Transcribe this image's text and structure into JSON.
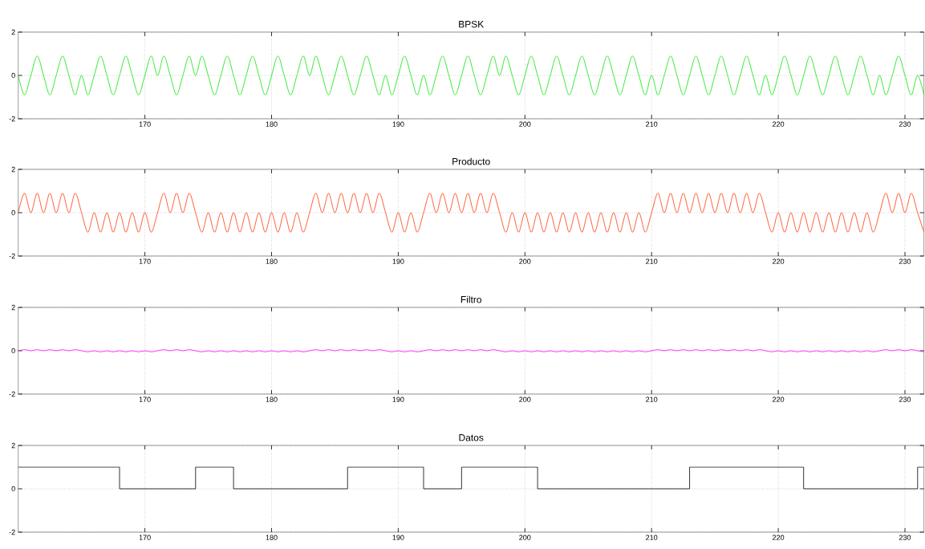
{
  "chart_data": [
    {
      "type": "line",
      "title": "BPSK",
      "color": "#00e600",
      "grid": true,
      "xlim": [
        160,
        231.5
      ],
      "ylim": [
        -2,
        2
      ],
      "xticks": [
        170,
        180,
        190,
        200,
        210,
        220,
        230
      ],
      "yticks": [
        -2,
        0,
        2
      ],
      "x": [
        160,
        160.5,
        161,
        161.5,
        162,
        162.5,
        163,
        163.5,
        164,
        164.5,
        165,
        165.5,
        166,
        166.5,
        167,
        167.5,
        168,
        168.5,
        169,
        169.5,
        170,
        170.5,
        171,
        171.5,
        172,
        172.5,
        173,
        173.5,
        174,
        174.5,
        175,
        175.5,
        176,
        176.5,
        177,
        177.5,
        178,
        178.5,
        179,
        179.5,
        180,
        180.5,
        181,
        181.5,
        182,
        182.5,
        183,
        183.5,
        184,
        184.5,
        185,
        185.5,
        186,
        186.5,
        187,
        187.5,
        188,
        188.5,
        189,
        189.5,
        190,
        190.5,
        191,
        191.5,
        192,
        192.5,
        193,
        193.5,
        194,
        194.5,
        195,
        195.5,
        196,
        196.5,
        197,
        197.5,
        198,
        198.5,
        199,
        199.5,
        200,
        200.5,
        201,
        201.5,
        202,
        202.5,
        203,
        203.5,
        204,
        204.5,
        205,
        205.5,
        206,
        206.5,
        207,
        207.5,
        208,
        208.5,
        209,
        209.5,
        210,
        210.5,
        211,
        211.5,
        212,
        212.5,
        213,
        213.5,
        214,
        214.5,
        215,
        215.5,
        216,
        216.5,
        217,
        217.5,
        218,
        218.5,
        219,
        219.5,
        220,
        220.5,
        221,
        221.5,
        222,
        222.5,
        223,
        223.5,
        224,
        224.5,
        225,
        225.5,
        226,
        226.5,
        227,
        227.5,
        228,
        228.5,
        229,
        229.5,
        230,
        230.5,
        231,
        231.5
      ],
      "values": [
        0,
        -0.9,
        0,
        0.9,
        0,
        -0.9,
        0,
        0.9,
        0,
        -0.9,
        0,
        -0.9,
        0,
        0.9,
        0,
        -0.9,
        0,
        0.9,
        0,
        -0.9,
        0,
        0.9,
        0,
        0.9,
        0,
        -0.9,
        0,
        0.9,
        0,
        0.9,
        0,
        -0.9,
        0,
        0.9,
        0,
        -0.9,
        0,
        0.9,
        0,
        -0.9,
        0,
        0.9,
        0,
        -0.9,
        0,
        0.9,
        0,
        0.9,
        0,
        -0.9,
        0,
        0.9,
        0,
        -0.9,
        0,
        0.9,
        0,
        -0.9,
        0,
        -0.9,
        0,
        0.9,
        0,
        -0.9,
        0,
        -0.9,
        0,
        0.9,
        0,
        -0.9,
        0,
        0.9,
        0,
        -0.9,
        0,
        0.9,
        0,
        0.9,
        0,
        -0.9,
        0,
        0.9,
        0,
        -0.9,
        0,
        0.9,
        0,
        -0.9,
        0,
        0.9,
        0,
        -0.9,
        0,
        0.9,
        0,
        -0.9,
        0,
        0.9,
        0,
        -0.9,
        0,
        -0.9,
        0,
        0.9,
        0,
        -0.9,
        0,
        0.9,
        0,
        -0.9,
        0,
        0.9,
        0,
        -0.9,
        0,
        0.9,
        0,
        -0.9,
        0,
        -0.9,
        0,
        0.9,
        0,
        -0.9,
        0,
        0.9,
        0,
        -0.9,
        0,
        0.9,
        0,
        -0.9,
        0,
        0.9,
        0,
        -0.9,
        0,
        -0.9,
        0,
        0.9,
        0,
        -0.9,
        0,
        -0.9
      ]
    },
    {
      "type": "line",
      "title": "Producto",
      "color": "#ff3300",
      "grid": true,
      "xlim": [
        160,
        231.5
      ],
      "ylim": [
        -2,
        2
      ],
      "xticks": [
        170,
        180,
        190,
        200,
        210,
        220,
        230
      ],
      "yticks": [
        -2,
        0,
        2
      ],
      "x": [
        160,
        160.5,
        161,
        161.5,
        162,
        162.5,
        163,
        163.5,
        164,
        164.5,
        165,
        165.5,
        166,
        166.5,
        167,
        167.5,
        168,
        168.5,
        169,
        169.5,
        170,
        170.5,
        171,
        171.5,
        172,
        172.5,
        173,
        173.5,
        174,
        174.5,
        175,
        175.5,
        176,
        176.5,
        177,
        177.5,
        178,
        178.5,
        179,
        179.5,
        180,
        180.5,
        181,
        181.5,
        182,
        182.5,
        183,
        183.5,
        184,
        184.5,
        185,
        185.5,
        186,
        186.5,
        187,
        187.5,
        188,
        188.5,
        189,
        189.5,
        190,
        190.5,
        191,
        191.5,
        192,
        192.5,
        193,
        193.5,
        194,
        194.5,
        195,
        195.5,
        196,
        196.5,
        197,
        197.5,
        198,
        198.5,
        199,
        199.5,
        200,
        200.5,
        201,
        201.5,
        202,
        202.5,
        203,
        203.5,
        204,
        204.5,
        205,
        205.5,
        206,
        206.5,
        207,
        207.5,
        208,
        208.5,
        209,
        209.5,
        210,
        210.5,
        211,
        211.5,
        212,
        212.5,
        213,
        213.5,
        214,
        214.5,
        215,
        215.5,
        216,
        216.5,
        217,
        217.5,
        218,
        218.5,
        219,
        219.5,
        220,
        220.5,
        221,
        221.5,
        222,
        222.5,
        223,
        223.5,
        224,
        224.5,
        225,
        225.5,
        226,
        226.5,
        227,
        227.5,
        228,
        228.5,
        229,
        229.5,
        230,
        230.5,
        231,
        231.5
      ],
      "values": [
        0,
        0.9,
        0,
        0.9,
        0,
        0.9,
        0,
        0.9,
        0,
        0.9,
        0,
        -0.9,
        0,
        -0.9,
        0,
        -0.9,
        0,
        -0.9,
        0,
        -0.9,
        0,
        -0.9,
        0,
        0.9,
        0,
        0.9,
        0,
        0.9,
        0,
        -0.9,
        0,
        -0.9,
        0,
        -0.9,
        0,
        -0.9,
        0,
        -0.9,
        0,
        -0.9,
        0,
        -0.9,
        0,
        -0.9,
        0,
        -0.9,
        0,
        0.9,
        0,
        0.9,
        0,
        0.9,
        0,
        0.9,
        0,
        0.9,
        0,
        0.9,
        0,
        -0.9,
        0,
        -0.9,
        0,
        -0.9,
        0,
        0.9,
        0,
        0.9,
        0,
        0.9,
        0,
        0.9,
        0,
        0.9,
        0,
        0.9,
        0,
        -0.9,
        0,
        -0.9,
        0,
        -0.9,
        0,
        -0.9,
        0,
        -0.9,
        0,
        -0.9,
        0,
        -0.9,
        0,
        -0.9,
        0,
        -0.9,
        0,
        -0.9,
        0,
        -0.9,
        0,
        -0.9,
        0,
        0.9,
        0,
        0.9,
        0,
        0.9,
        0,
        0.9,
        0,
        0.9,
        0,
        0.9,
        0,
        0.9,
        0,
        0.9,
        0,
        0.9,
        0,
        -0.9,
        0,
        -0.9,
        0,
        -0.9,
        0,
        -0.9,
        0,
        -0.9,
        0,
        -0.9,
        0,
        -0.9,
        0,
        -0.9,
        0,
        -0.9,
        0,
        0.9,
        0,
        0.9,
        0,
        0.9,
        0,
        -0.9
      ]
    },
    {
      "type": "line",
      "title": "Filtro",
      "color": "#ff00ff",
      "grid": true,
      "xlim": [
        160,
        231.5
      ],
      "ylim": [
        -2,
        2
      ],
      "xticks": [
        170,
        180,
        190,
        200,
        210,
        220,
        230
      ],
      "yticks": [
        -2,
        0,
        2
      ],
      "x": [
        160,
        160.5,
        161,
        161.5,
        162,
        162.5,
        163,
        163.5,
        164,
        164.5,
        165,
        165.5,
        166,
        166.5,
        167,
        167.5,
        168,
        168.5,
        169,
        169.5,
        170,
        170.5,
        171,
        171.5,
        172,
        172.5,
        173,
        173.5,
        174,
        174.5,
        175,
        175.5,
        176,
        176.5,
        177,
        177.5,
        178,
        178.5,
        179,
        179.5,
        180,
        180.5,
        181,
        181.5,
        182,
        182.5,
        183,
        183.5,
        184,
        184.5,
        185,
        185.5,
        186,
        186.5,
        187,
        187.5,
        188,
        188.5,
        189,
        189.5,
        190,
        190.5,
        191,
        191.5,
        192,
        192.5,
        193,
        193.5,
        194,
        194.5,
        195,
        195.5,
        196,
        196.5,
        197,
        197.5,
        198,
        198.5,
        199,
        199.5,
        200,
        200.5,
        201,
        201.5,
        202,
        202.5,
        203,
        203.5,
        204,
        204.5,
        205,
        205.5,
        206,
        206.5,
        207,
        207.5,
        208,
        208.5,
        209,
        209.5,
        210,
        210.5,
        211,
        211.5,
        212,
        212.5,
        213,
        213.5,
        214,
        214.5,
        215,
        215.5,
        216,
        216.5,
        217,
        217.5,
        218,
        218.5,
        219,
        219.5,
        220,
        220.5,
        221,
        221.5,
        222,
        222.5,
        223,
        223.5,
        224,
        224.5,
        225,
        225.5,
        226,
        226.5,
        227,
        227.5,
        228,
        228.5,
        229,
        229.5,
        230,
        230.5,
        231,
        231.5
      ],
      "values": [
        0,
        0.05,
        0,
        0.05,
        0,
        0.05,
        0,
        0.05,
        0,
        0.05,
        0,
        -0.05,
        0,
        -0.05,
        0,
        -0.05,
        0,
        -0.05,
        0,
        -0.05,
        0,
        -0.05,
        0,
        0.05,
        0,
        0.05,
        0,
        0.05,
        0,
        -0.05,
        0,
        -0.05,
        0,
        -0.05,
        0,
        -0.05,
        0,
        -0.05,
        0,
        -0.05,
        0,
        -0.05,
        0,
        -0.05,
        0,
        -0.05,
        0,
        0.05,
        0,
        0.05,
        0,
        0.05,
        0,
        0.05,
        0,
        0.05,
        0,
        0.05,
        0,
        -0.05,
        0,
        -0.05,
        0,
        -0.05,
        0,
        0.05,
        0,
        0.05,
        0,
        0.05,
        0,
        0.05,
        0,
        0.05,
        0,
        0.05,
        0,
        -0.05,
        0,
        -0.05,
        0,
        -0.05,
        0,
        -0.05,
        0,
        -0.05,
        0,
        -0.05,
        0,
        -0.05,
        0,
        -0.05,
        0,
        -0.05,
        0,
        -0.05,
        0,
        -0.05,
        0,
        -0.05,
        0,
        0.05,
        0,
        0.05,
        0,
        0.05,
        0,
        0.05,
        0,
        0.05,
        0,
        0.05,
        0,
        0.05,
        0,
        0.05,
        0,
        0.05,
        0,
        -0.05,
        0,
        -0.05,
        0,
        -0.05,
        0,
        -0.05,
        0,
        -0.05,
        0,
        -0.05,
        0,
        -0.05,
        0,
        -0.05,
        0,
        -0.05,
        0,
        0.05,
        0,
        0.05,
        0,
        0.05,
        0,
        -0.05
      ]
    },
    {
      "type": "step",
      "title": "Datos",
      "color": "#000000",
      "grid": true,
      "xlim": [
        160,
        231.5
      ],
      "ylim": [
        -2,
        2
      ],
      "xticks": [
        170,
        180,
        190,
        200,
        210,
        220,
        230
      ],
      "yticks": [
        -2,
        0,
        2
      ],
      "x": [
        160,
        168,
        174,
        177,
        186,
        192,
        195,
        201,
        213,
        222,
        231,
        231.5
      ],
      "values": [
        1,
        0,
        1,
        0,
        1,
        0,
        1,
        0,
        1,
        0,
        1,
        1
      ]
    }
  ]
}
